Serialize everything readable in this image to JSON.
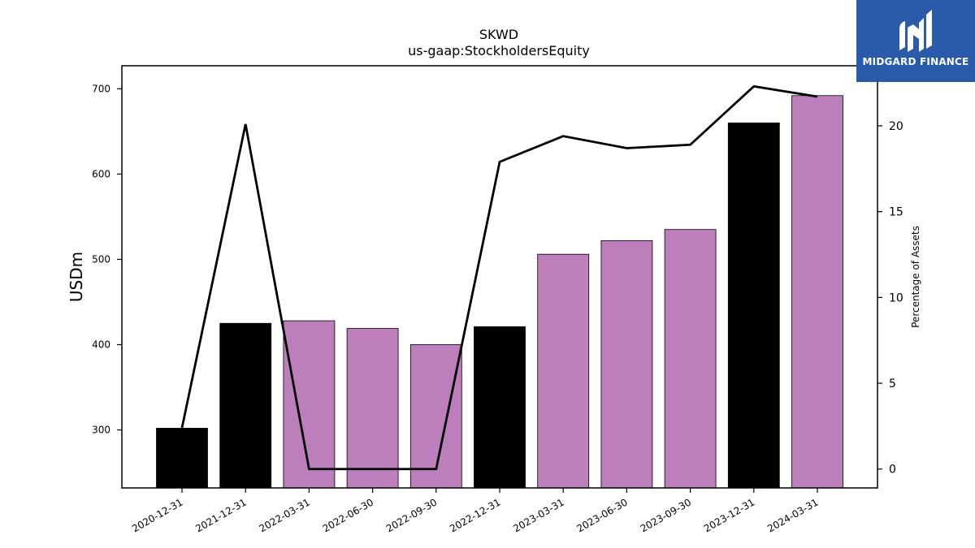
{
  "chart_data": {
    "type": "bar",
    "title": "SKWD",
    "subtitle": "us-gaap:StockholdersEquity",
    "ylabel": "USDm",
    "y2label": "Percentage of Assets",
    "ylim": [
      232,
      727
    ],
    "y2lim": [
      -1.1,
      23.5
    ],
    "yticks": [
      300,
      400,
      500,
      600,
      700
    ],
    "y2ticks": [
      0,
      5,
      10,
      15,
      20
    ],
    "categories": [
      "2020-12-31",
      "2021-12-31",
      "2022-03-31",
      "2022-06-30",
      "2022-09-30",
      "2022-12-31",
      "2023-03-31",
      "2023-06-30",
      "2023-09-30",
      "2023-12-31",
      "2024-03-31"
    ],
    "series": [
      {
        "type": "bar",
        "values": [
          302,
          425,
          428,
          419,
          400,
          421,
          506,
          522,
          535,
          660,
          692
        ],
        "colors": [
          "#000000",
          "#000000",
          "#bc7fbc",
          "#bc7fbc",
          "#bc7fbc",
          "#000000",
          "#bc7fbc",
          "#bc7fbc",
          "#bc7fbc",
          "#000000",
          "#bc7fbc"
        ]
      },
      {
        "type": "line",
        "axis": "right",
        "values": [
          2.4,
          20.1,
          0.0,
          0.0,
          0.0,
          17.9,
          19.4,
          18.7,
          18.9,
          22.3,
          21.7
        ],
        "color": "#000000"
      }
    ],
    "grid": false
  },
  "logo": {
    "text": "MIDGARD FINANCE",
    "bg_color": "#2a5bab"
  }
}
